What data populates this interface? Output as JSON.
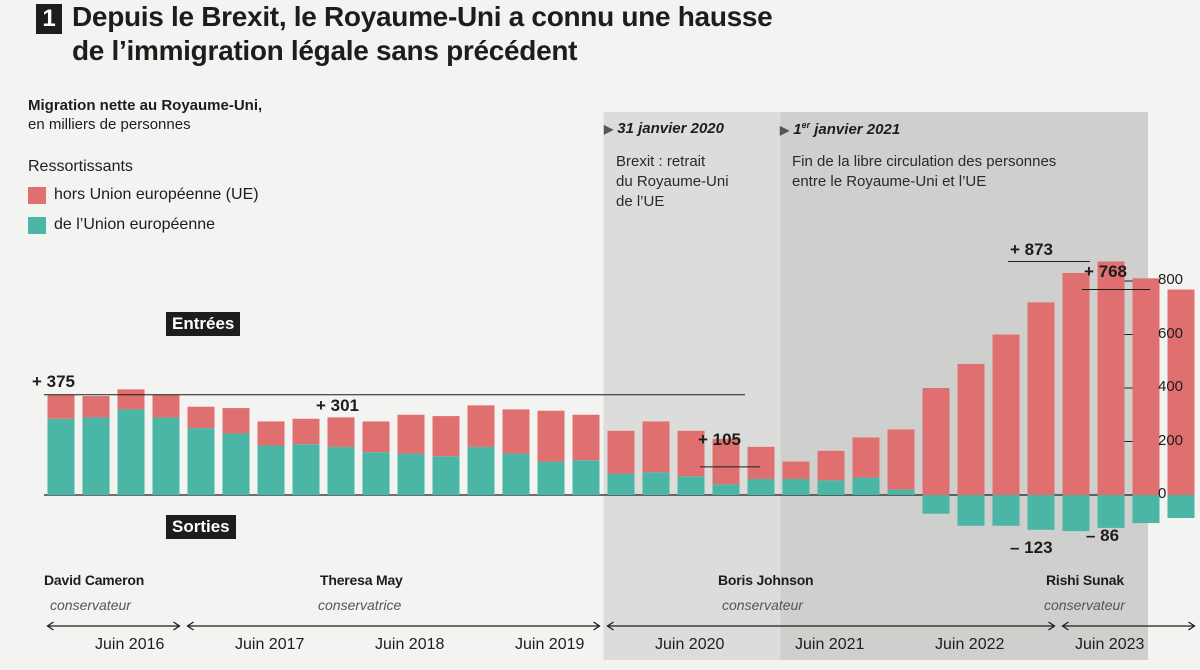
{
  "header": {
    "number": "1",
    "title_line1": "Depuis le Brexit, le Royaume-Uni a connu une hausse",
    "title_line2": "de l’immigration légale sans précédent"
  },
  "subtitle": {
    "line1": "Migration nette au Royaume-Uni,",
    "line2": "en milliers de personnes"
  },
  "legend": {
    "title": "Ressortissants",
    "items": [
      {
        "label": "hors Union européenne (UE)",
        "color": "#e07070"
      },
      {
        "label": "de l’Union européenne",
        "color": "#4bb6a5"
      }
    ]
  },
  "events": [
    {
      "date": "31 janvier 2020",
      "desc1": "Brexit : retrait",
      "desc2": "du Royaume-Uni",
      "desc3": "de l’UE"
    },
    {
      "date_prefix": "1",
      "date_sup": "er",
      "date_suffix": " janvier 2021",
      "desc1": "Fin de la libre circulation des personnes",
      "desc2": "entre le Royaume-Uni et l’UE"
    }
  ],
  "tags": {
    "entries": "Entrées",
    "exits": "Sorties"
  },
  "prime_ministers": [
    {
      "name": "David Cameron",
      "party": "conservateur"
    },
    {
      "name": "Theresa May",
      "party": "conservatrice"
    },
    {
      "name": "Boris Johnson",
      "party": "conservateur"
    },
    {
      "name": "Rishi Sunak",
      "party": "conservateur"
    }
  ],
  "annotations": [
    "+ 375",
    "+ 301",
    "+ 105",
    "+ 873",
    "+ 768",
    "– 123",
    "– 86"
  ],
  "chart_data": {
    "type": "bar",
    "stacked": true,
    "unit": "milliers de personnes",
    "x_tick_labels": [
      "Juin 2016",
      "Juin 2017",
      "Juin 2018",
      "Juin 2019",
      "Juin 2020",
      "Juin 2021",
      "Juin 2022",
      "Juin 2023"
    ],
    "y_ticks": [
      0,
      200,
      400,
      600,
      800
    ],
    "ylim": [
      -130,
      900
    ],
    "series": [
      {
        "name": "hors Union européenne (UE)",
        "color": "#e07070",
        "values": [
          90,
          80,
          75,
          85,
          80,
          95,
          90,
          95,
          110,
          115,
          145,
          150,
          155,
          165,
          190,
          170,
          160,
          190,
          170,
          170,
          120,
          65,
          110,
          150,
          225,
          400,
          490,
          600,
          720,
          830,
          873,
          810,
          768
        ]
      },
      {
        "name": "de l’Union européenne",
        "color": "#4bb6a5",
        "values": [
          285,
          290,
          320,
          290,
          250,
          230,
          185,
          190,
          180,
          160,
          155,
          145,
          180,
          155,
          125,
          130,
          80,
          85,
          70,
          40,
          60,
          60,
          55,
          65,
          20,
          -70,
          -115,
          -115,
          -130,
          -135,
          -123,
          -105,
          -86
        ]
      }
    ],
    "reference_lines": [
      375,
      105,
      873,
      768
    ],
    "periods": [
      {
        "label": "David Cameron",
        "start_bar": 0,
        "end_bar": 3
      },
      {
        "label": "Theresa May",
        "start_bar": 4,
        "end_bar": 15
      },
      {
        "label": "Boris Johnson",
        "start_bar": 16,
        "end_bar": 28
      },
      {
        "label": "Rishi Sunak",
        "start_bar": 29,
        "end_bar": 32
      }
    ],
    "shaded_from_bar": 16,
    "event_bars": [
      16,
      21
    ]
  }
}
